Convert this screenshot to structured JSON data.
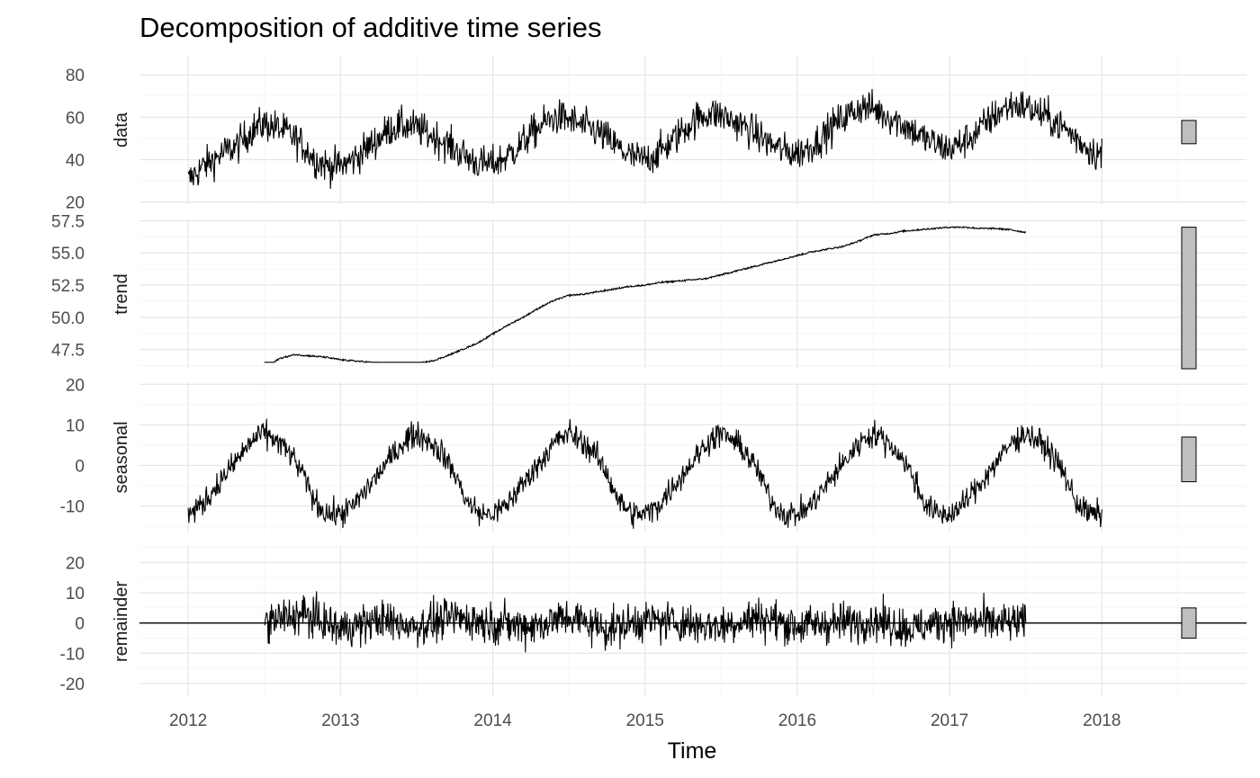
{
  "chart_data": {
    "type": "line",
    "title": "Decomposition of additive time series",
    "xlabel": "Time",
    "xlim": [
      2011.68,
      2018.95
    ],
    "x_ticks": [
      2012,
      2013,
      2014,
      2015,
      2016,
      2017,
      2018
    ],
    "x_tick_labels": [
      "2012",
      "2013",
      "2014",
      "2015",
      "2016",
      "2017",
      "2018"
    ],
    "grid": true,
    "legend": "none",
    "facets": [
      {
        "name": "data",
        "ylim": [
          19,
          89
        ],
        "y_ticks": [
          20,
          40,
          60,
          80
        ],
        "y_tick_labels": [
          "20",
          "40",
          "60",
          "80"
        ],
        "range_bar": [
          47.5,
          58.5
        ],
        "x_range": [
          2012.0,
          2018.0
        ],
        "series": [
          {
            "x": [
              2012.0,
              2012.083,
              2012.167,
              2012.25,
              2012.333,
              2012.417,
              2012.5,
              2012.583,
              2012.667,
              2012.75,
              2012.833,
              2012.917,
              2013.0,
              2013.083,
              2013.167,
              2013.25,
              2013.333,
              2013.417,
              2013.5,
              2013.583,
              2013.667,
              2013.75,
              2013.833,
              2013.917,
              2014.0,
              2014.083,
              2014.167,
              2014.25,
              2014.333,
              2014.417,
              2014.5,
              2014.583,
              2014.667,
              2014.75,
              2014.833,
              2014.917,
              2015.0,
              2015.083,
              2015.167,
              2015.25,
              2015.333,
              2015.417,
              2015.5,
              2015.583,
              2015.667,
              2015.75,
              2015.833,
              2015.917,
              2016.0,
              2016.083,
              2016.167,
              2016.25,
              2016.333,
              2016.417,
              2016.5,
              2016.583,
              2016.667,
              2016.75,
              2016.833,
              2016.917,
              2017.0,
              2017.083,
              2017.167,
              2017.25,
              2017.333,
              2017.417,
              2017.5,
              2017.583,
              2017.667,
              2017.75,
              2017.833,
              2017.917,
              2018.0
            ],
            "y": [
              30,
              36,
              40,
              44,
              47,
              54,
              57,
              55,
              52,
              47,
              40,
              37,
              37,
              40,
              45,
              50,
              55,
              56,
              55,
              52,
              49,
              45,
              41,
              38,
              38,
              41,
              46,
              52,
              57,
              60,
              59,
              56,
              54,
              50,
              45,
              41,
              40,
              43,
              48,
              54,
              59,
              62,
              61,
              58,
              55,
              51,
              47,
              44,
              43,
              46,
              51,
              57,
              61,
              65,
              64,
              61,
              58,
              54,
              50,
              47,
              45,
              48,
              52,
              58,
              63,
              66,
              65,
              62,
              59,
              55,
              50,
              45,
              42
            ]
          }
        ]
      },
      {
        "name": "trend",
        "ylim": [
          46.0,
          57.6
        ],
        "y_ticks": [
          47.5,
          50.0,
          52.5,
          55.0,
          57.5
        ],
        "y_tick_labels": [
          "47.5",
          "50.0",
          "52.5",
          "55.0",
          "57.5"
        ],
        "range_bar": [
          46.0,
          57.0
        ],
        "x_range": [
          2012.5,
          2017.5
        ],
        "series": [
          {
            "x": [
              2012.5,
              2012.6,
              2012.7,
              2012.8,
              2012.9,
              2013.0,
              2013.1,
              2013.2,
              2013.3,
              2013.4,
              2013.5,
              2013.6,
              2013.7,
              2013.8,
              2013.9,
              2014.0,
              2014.1,
              2014.2,
              2014.3,
              2014.4,
              2014.5,
              2014.6,
              2014.7,
              2014.8,
              2014.9,
              2015.0,
              2015.1,
              2015.2,
              2015.3,
              2015.4,
              2015.5,
              2015.6,
              2015.7,
              2015.8,
              2015.9,
              2016.0,
              2016.1,
              2016.2,
              2016.3,
              2016.4,
              2016.5,
              2016.6,
              2016.7,
              2016.8,
              2016.9,
              2017.0,
              2017.1,
              2017.2,
              2017.3,
              2017.4,
              2017.5
            ],
            "y": [
              46.0,
              46.8,
              47.1,
              47.0,
              46.9,
              46.7,
              46.6,
              46.5,
              46.4,
              46.3,
              46.4,
              46.6,
              47.0,
              47.5,
              48.0,
              48.7,
              49.4,
              50.0,
              50.7,
              51.3,
              51.7,
              51.8,
              52.0,
              52.2,
              52.4,
              52.5,
              52.7,
              52.8,
              52.9,
              53.0,
              53.3,
              53.6,
              53.9,
              54.2,
              54.5,
              54.8,
              55.1,
              55.3,
              55.5,
              55.9,
              56.4,
              56.5,
              56.7,
              56.8,
              56.9,
              57.0,
              57.0,
              56.9,
              56.9,
              56.8,
              56.6
            ]
          }
        ]
      },
      {
        "name": "seasonal",
        "ylim": [
          -16.5,
          20.5
        ],
        "y_ticks": [
          -10,
          0,
          10,
          20
        ],
        "y_tick_labels": [
          "-10",
          "0",
          "10",
          "20"
        ],
        "range_bar": [
          -4.0,
          7.0
        ],
        "x_range": [
          2012.0,
          2018.0
        ],
        "series": [
          {
            "x": [
              0.0,
              0.083,
              0.167,
              0.25,
              0.333,
              0.417,
              0.5,
              0.583,
              0.667,
              0.75,
              0.833,
              0.917,
              1.0
            ],
            "y": [
              -12,
              -10,
              -6,
              -2,
              2,
              6,
              8,
              6,
              3,
              -2,
              -9,
              -12,
              -12
            ],
            "repeat_yearly": true
          }
        ]
      },
      {
        "name": "remainder",
        "ylim": [
          -24.5,
          25.5
        ],
        "y_ticks": [
          -20,
          -10,
          0,
          10,
          20
        ],
        "y_tick_labels": [
          "-20",
          "-10",
          "0",
          "10",
          "20"
        ],
        "range_bar": [
          -5.0,
          5.0
        ],
        "x_range": [
          2012.5,
          2017.5
        ],
        "zero_line": 0,
        "series": [
          {
            "x": [
              2012.5,
              2012.75,
              2013.0,
              2013.25,
              2013.5,
              2013.75,
              2014.0,
              2014.25,
              2014.5,
              2014.75,
              2015.0,
              2015.25,
              2015.5,
              2015.75,
              2016.0,
              2016.25,
              2016.5,
              2016.75,
              2017.0,
              2017.25,
              2017.5
            ],
            "y": [
              0,
              3,
              -2,
              1,
              -1,
              2,
              0,
              -1,
              2,
              -2,
              1,
              0,
              -1,
              2,
              -1,
              0,
              1,
              -2,
              1,
              0,
              0
            ],
            "spread": 9
          }
        ]
      }
    ]
  }
}
